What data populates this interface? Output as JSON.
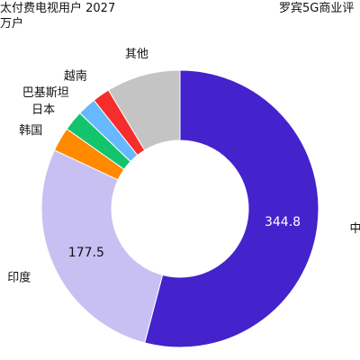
{
  "header": {
    "title": "太付费电视用户 2027",
    "unit": "万户",
    "source": "罗宾5G商业评"
  },
  "chart_data": {
    "type": "pie",
    "donut": true,
    "title": "太付费电视用户 2027",
    "unit": "万户",
    "start_angle_deg": 0,
    "direction": "clockwise",
    "slices": [
      {
        "label": "中国",
        "value": 344.8,
        "value_label": "344.8",
        "color": "#4422cc"
      },
      {
        "label": "印度",
        "value": 177.5,
        "value_label": "177.5",
        "color": "#c8c0f2"
      },
      {
        "label": "韩国",
        "value": 18.0,
        "value_label": "",
        "color": "#ff8a00"
      },
      {
        "label": "日本",
        "value": 15.0,
        "value_label": "",
        "color": "#14c46c"
      },
      {
        "label": "巴基斯坦",
        "value": 14.0,
        "value_label": "",
        "color": "#66b8ff"
      },
      {
        "label": "越南",
        "value": 13.0,
        "value_label": "",
        "color": "#f52d2d"
      },
      {
        "label": "其他",
        "value": 55.0,
        "value_label": "",
        "color": "#c4c4c4"
      }
    ]
  }
}
